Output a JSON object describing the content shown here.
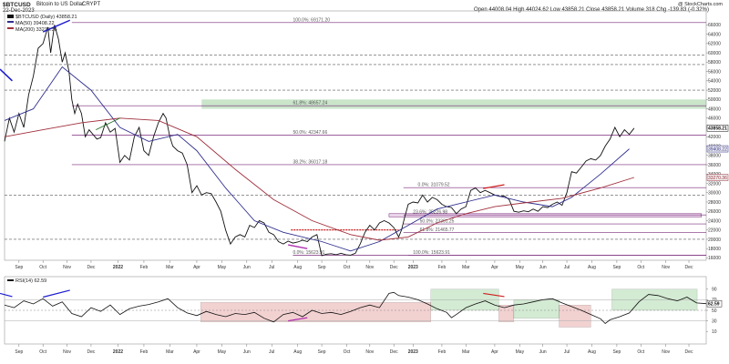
{
  "header": {
    "symbol": "$BTCUSD",
    "name": "Bitcoin to US Dollar",
    "exchange": "CRYPT",
    "date": "22-Dec-2023",
    "open_label": "Open",
    "open": "44008.04",
    "high_label": "High",
    "high": "44024.62",
    "low_label": "Low",
    "low": "43858.21",
    "close_label": "Close",
    "close": "43858.21",
    "volume_label": "Volume",
    "volume": "318",
    "chg_label": "Chg",
    "chg": "-139.83 (-0.32%)",
    "watermark": "@ StockCharts.com"
  },
  "legend": {
    "price": "$BTCUSD (Daily) 43858.21",
    "ma50": "MA(50) 39408.22",
    "ma200": "MA(200) 33270.36",
    "rsi": "RSI(14) 62.59"
  },
  "colors": {
    "price": "#111111",
    "ma50": "#2f2f8f",
    "ma200": "#a0303c",
    "fib": "#7a2a7a",
    "dashed": "#555555",
    "red_support": "#c00000",
    "green_zone": "rgba(80,170,80,0.30)",
    "red_zone": "rgba(210,90,90,0.28)",
    "rsi_green_fill": "#2e7d32",
    "rsi_red_fill": "#b23a3a",
    "trend_blue": "#1b1bd1",
    "trend_red": "#d02020",
    "trend_purple": "#b030b0",
    "rsi_line": "#111111"
  },
  "chart_data": {
    "type": "line",
    "title": "$BTCUSD Bitcoin to US Dollar",
    "subtitle": "CRYPT",
    "xlabel": "",
    "ylabel": "",
    "x_tick_labels": [
      "Sep",
      "Oct",
      "Nov",
      "Dec",
      "2022",
      "Feb",
      "Mar",
      "Apr",
      "May",
      "Jun",
      "Jul",
      "Aug",
      "Sep",
      "Oct",
      "Nov",
      "Dec",
      "2023",
      "Feb",
      "Mar",
      "Apr",
      "May",
      "Jun",
      "Jul",
      "Aug",
      "Sep",
      "Oct",
      "Nov",
      "Dec"
    ],
    "y_ticks": [
      16000,
      18000,
      20000,
      22000,
      24000,
      26000,
      28000,
      30000,
      32000,
      34000,
      36000,
      38000,
      40000,
      42000,
      44000,
      46000,
      48000,
      50000,
      52000,
      54000,
      56000,
      58000,
      60000,
      62000,
      64000,
      66000
    ],
    "ylim": [
      15500,
      69000
    ],
    "grid": false,
    "series": [
      {
        "name": "$BTCUSD (Daily)",
        "points": [
          [
            0,
            41000
          ],
          [
            5,
            46000
          ],
          [
            10,
            43000
          ],
          [
            15,
            47000
          ],
          [
            20,
            44000
          ],
          [
            25,
            51000
          ],
          [
            30,
            55000
          ],
          [
            35,
            61000
          ],
          [
            40,
            62000
          ],
          [
            45,
            65500
          ],
          [
            48,
            60000
          ],
          [
            52,
            66000
          ],
          [
            56,
            63000
          ],
          [
            60,
            58000
          ],
          [
            63,
            60000
          ],
          [
            67,
            56000
          ],
          [
            70,
            50000
          ],
          [
            73,
            47000
          ],
          [
            76,
            49000
          ],
          [
            80,
            47000
          ],
          [
            84,
            42000
          ],
          [
            88,
            43500
          ],
          [
            92,
            42500
          ],
          [
            96,
            41500
          ],
          [
            100,
            41800
          ],
          [
            105,
            45000
          ],
          [
            110,
            43000
          ],
          [
            115,
            43800
          ],
          [
            120,
            36500
          ],
          [
            125,
            38000
          ],
          [
            130,
            37000
          ],
          [
            135,
            42000
          ],
          [
            140,
            44000
          ],
          [
            145,
            39000
          ],
          [
            150,
            38000
          ],
          [
            155,
            42000
          ],
          [
            160,
            45000
          ],
          [
            165,
            47000
          ],
          [
            168,
            46000
          ],
          [
            172,
            42000
          ],
          [
            175,
            40000
          ],
          [
            180,
            39000
          ],
          [
            185,
            38500
          ],
          [
            190,
            36000
          ],
          [
            195,
            30000
          ],
          [
            200,
            31500
          ],
          [
            205,
            29500
          ],
          [
            210,
            30000
          ],
          [
            215,
            29800
          ],
          [
            220,
            28000
          ],
          [
            225,
            26000
          ],
          [
            230,
            22000
          ],
          [
            235,
            19000
          ],
          [
            240,
            20500
          ],
          [
            245,
            21000
          ],
          [
            250,
            20500
          ],
          [
            255,
            23000
          ],
          [
            260,
            22500
          ],
          [
            265,
            24000
          ],
          [
            270,
            23500
          ],
          [
            275,
            21500
          ],
          [
            280,
            21000
          ],
          [
            285,
            19500
          ],
          [
            290,
            19000
          ],
          [
            295,
            19600
          ],
          [
            300,
            19200
          ],
          [
            305,
            19400
          ],
          [
            310,
            19800
          ],
          [
            315,
            19500
          ],
          [
            320,
            20500
          ],
          [
            325,
            21000
          ],
          [
            330,
            16500
          ],
          [
            335,
            16800
          ],
          [
            340,
            16900
          ],
          [
            345,
            16700
          ],
          [
            350,
            17000
          ],
          [
            355,
            16700
          ],
          [
            360,
            16600
          ],
          [
            365,
            17000
          ],
          [
            370,
            19000
          ],
          [
            375,
            21500
          ],
          [
            380,
            23000
          ],
          [
            385,
            22000
          ],
          [
            390,
            23500
          ],
          [
            395,
            24000
          ],
          [
            400,
            23500
          ],
          [
            405,
            22500
          ],
          [
            410,
            20500
          ],
          [
            413,
            22000
          ],
          [
            416,
            24500
          ],
          [
            420,
            27500
          ],
          [
            425,
            28000
          ],
          [
            430,
            27800
          ],
          [
            435,
            29500
          ],
          [
            440,
            28000
          ],
          [
            445,
            29000
          ],
          [
            450,
            28500
          ],
          [
            455,
            27500
          ],
          [
            460,
            27000
          ],
          [
            465,
            26800
          ],
          [
            470,
            25500
          ],
          [
            475,
            26500
          ],
          [
            480,
            27000
          ],
          [
            485,
            30500
          ],
          [
            490,
            31000
          ],
          [
            495,
            30000
          ],
          [
            500,
            30500
          ],
          [
            505,
            30000
          ],
          [
            510,
            29500
          ],
          [
            515,
            29200
          ],
          [
            520,
            29300
          ],
          [
            525,
            28500
          ],
          [
            530,
            26000
          ],
          [
            535,
            25800
          ],
          [
            540,
            26100
          ],
          [
            545,
            25900
          ],
          [
            550,
            26500
          ],
          [
            555,
            26000
          ],
          [
            560,
            27000
          ],
          [
            565,
            26800
          ],
          [
            570,
            27500
          ],
          [
            575,
            28000
          ],
          [
            580,
            27300
          ],
          [
            585,
            30000
          ],
          [
            590,
            34500
          ],
          [
            595,
            34200
          ],
          [
            600,
            35500
          ],
          [
            605,
            36800
          ],
          [
            610,
            37300
          ],
          [
            615,
            37000
          ],
          [
            620,
            38000
          ],
          [
            625,
            40000
          ],
          [
            630,
            41500
          ],
          [
            635,
            44000
          ],
          [
            640,
            42000
          ],
          [
            645,
            43500
          ],
          [
            650,
            42500
          ],
          [
            655,
            43858
          ]
        ]
      },
      {
        "name": "MA(50)",
        "points": [
          [
            0,
            45500
          ],
          [
            30,
            48000
          ],
          [
            60,
            57000
          ],
          [
            90,
            52000
          ],
          [
            120,
            44000
          ],
          [
            150,
            41000
          ],
          [
            180,
            42500
          ],
          [
            200,
            39000
          ],
          [
            230,
            31000
          ],
          [
            260,
            24000
          ],
          [
            290,
            21500
          ],
          [
            330,
            19500
          ],
          [
            360,
            17500
          ],
          [
            390,
            19500
          ],
          [
            420,
            23000
          ],
          [
            450,
            26500
          ],
          [
            480,
            28000
          ],
          [
            510,
            29500
          ],
          [
            540,
            28000
          ],
          [
            570,
            27000
          ],
          [
            590,
            29000
          ],
          [
            620,
            34000
          ],
          [
            650,
            39400
          ]
        ]
      },
      {
        "name": "MA(200)",
        "points": [
          [
            0,
            42000
          ],
          [
            40,
            43500
          ],
          [
            80,
            45000
          ],
          [
            120,
            46000
          ],
          [
            160,
            45500
          ],
          [
            200,
            42000
          ],
          [
            240,
            35000
          ],
          [
            280,
            28500
          ],
          [
            320,
            24000
          ],
          [
            360,
            21000
          ],
          [
            390,
            19800
          ],
          [
            420,
            20500
          ],
          [
            450,
            23500
          ],
          [
            480,
            25500
          ],
          [
            510,
            27000
          ],
          [
            540,
            27800
          ],
          [
            580,
            28800
          ],
          [
            620,
            31000
          ],
          [
            655,
            33270
          ]
        ]
      }
    ],
    "fib_levels": [
      {
        "label": "0.0%: 31079.52",
        "value": 31079.52
      },
      {
        "label": "23.6%: 25226.98",
        "value": 25226.98
      },
      {
        "label": "50.0%: 23301.25",
        "value": 23301.25
      },
      {
        "label": "61.8%: 21465.77",
        "value": 21465.77
      },
      {
        "label": "100.0%: 69171.20",
        "value": 69171.2
      },
      {
        "label": "61.8%: 48657.24",
        "value": 48657.24
      },
      {
        "label": "50.0%: 42347.66",
        "value": 42347.66
      },
      {
        "label": "38.2%: 36017.18",
        "value": 36017.18
      },
      {
        "label": "0.0%: 15623.91",
        "value": 15623.91
      },
      {
        "label": "100.0%: 15623.91",
        "value": 15623.91
      }
    ],
    "price_labels": [
      "43858.21",
      "39408.22",
      "33270.36"
    ],
    "rsi": {
      "name": "RSI(14)",
      "last": 62.59,
      "last_label": "62.59",
      "y_ticks": [
        10,
        30,
        50,
        70,
        90
      ],
      "ylim": [
        0,
        100
      ],
      "points": [
        [
          0,
          60
        ],
        [
          10,
          55
        ],
        [
          20,
          68
        ],
        [
          30,
          62
        ],
        [
          40,
          72
        ],
        [
          50,
          58
        ],
        [
          60,
          66
        ],
        [
          70,
          44
        ],
        [
          80,
          38
        ],
        [
          90,
          55
        ],
        [
          100,
          48
        ],
        [
          110,
          60
        ],
        [
          120,
          42
        ],
        [
          130,
          53
        ],
        [
          140,
          58
        ],
        [
          150,
          61
        ],
        [
          160,
          66
        ],
        [
          170,
          72
        ],
        [
          180,
          55
        ],
        [
          190,
          45
        ],
        [
          200,
          40
        ],
        [
          210,
          48
        ],
        [
          220,
          42
        ],
        [
          230,
          38
        ],
        [
          240,
          44
        ],
        [
          250,
          42
        ],
        [
          260,
          46
        ],
        [
          270,
          35
        ],
        [
          280,
          28
        ],
        [
          290,
          42
        ],
        [
          300,
          46
        ],
        [
          310,
          38
        ],
        [
          320,
          50
        ],
        [
          330,
          44
        ],
        [
          340,
          46
        ],
        [
          350,
          42
        ],
        [
          360,
          48
        ],
        [
          370,
          55
        ],
        [
          380,
          60
        ],
        [
          390,
          55
        ],
        [
          400,
          82
        ],
        [
          405,
          84
        ],
        [
          410,
          78
        ],
        [
          420,
          75
        ],
        [
          430,
          70
        ],
        [
          440,
          62
        ],
        [
          450,
          53
        ],
        [
          460,
          46
        ],
        [
          465,
          36
        ],
        [
          470,
          42
        ],
        [
          480,
          55
        ],
        [
          490,
          62
        ],
        [
          500,
          68
        ],
        [
          510,
          60
        ],
        [
          520,
          55
        ],
        [
          530,
          60
        ],
        [
          540,
          62
        ],
        [
          550,
          66
        ],
        [
          560,
          70
        ],
        [
          570,
          72
        ],
        [
          580,
          64
        ],
        [
          590,
          57
        ],
        [
          600,
          50
        ],
        [
          610,
          42
        ],
        [
          620,
          34
        ],
        [
          625,
          25
        ],
        [
          630,
          32
        ],
        [
          640,
          38
        ],
        [
          650,
          45
        ],
        [
          660,
          66
        ],
        [
          670,
          80
        ],
        [
          680,
          78
        ],
        [
          690,
          72
        ],
        [
          700,
          68
        ],
        [
          710,
          75
        ],
        [
          720,
          64
        ],
        [
          730,
          62.59
        ]
      ]
    }
  }
}
